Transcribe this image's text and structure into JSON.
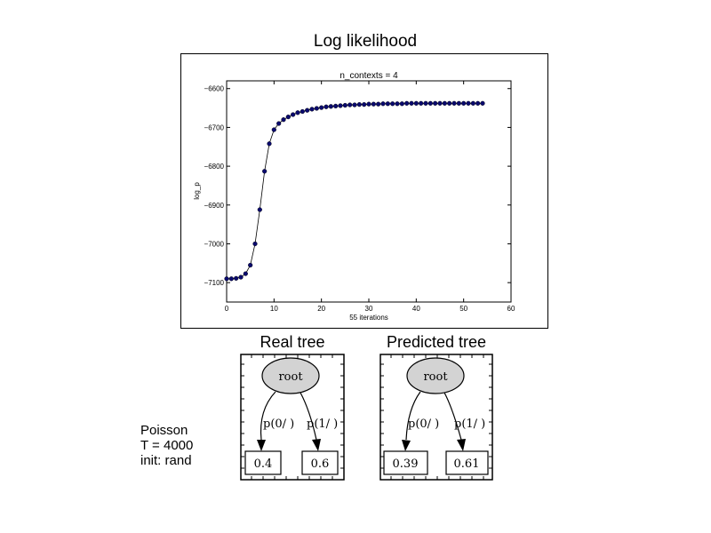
{
  "figure": {
    "title": "Log likelihood"
  },
  "chart_data": {
    "type": "line",
    "title": "n_contexts = 4",
    "xlabel": "55 iterations",
    "ylabel": "log_p",
    "xlim": [
      0,
      60
    ],
    "ylim": [
      -7150,
      -6580
    ],
    "xticks": [
      0,
      10,
      20,
      30,
      40,
      50,
      60
    ],
    "yticks": [
      -7100,
      -7000,
      -6900,
      -6800,
      -6700,
      -6600
    ],
    "series": [
      {
        "marker_color": "#0a0a6e",
        "x": [
          0,
          1,
          2,
          3,
          4,
          5,
          6,
          7,
          8,
          9,
          10,
          11,
          12,
          13,
          14,
          15,
          16,
          17,
          18,
          19,
          20,
          21,
          22,
          23,
          24,
          25,
          26,
          27,
          28,
          29,
          30,
          31,
          32,
          33,
          34,
          35,
          36,
          37,
          38,
          39,
          40,
          41,
          42,
          43,
          44,
          45,
          46,
          47,
          48,
          49,
          50,
          51,
          52,
          53,
          54
        ],
        "values": [
          -7090,
          -7090,
          -7089,
          -7086,
          -7077,
          -7055,
          -7000,
          -6912,
          -6813,
          -6742,
          -6706,
          -6690,
          -6680,
          -6673,
          -6667,
          -6662,
          -6659,
          -6656,
          -6653,
          -6651,
          -6649,
          -6647,
          -6646,
          -6645,
          -6644,
          -6643,
          -6642,
          -6642,
          -6641,
          -6641,
          -6640,
          -6640,
          -6640,
          -6639,
          -6639,
          -6639,
          -6639,
          -6639,
          -6638,
          -6638,
          -6638,
          -6638,
          -6638,
          -6638,
          -6638,
          -6638,
          -6638,
          -6638,
          -6638,
          -6638,
          -6638,
          -6638,
          -6638,
          -6638,
          -6638
        ]
      }
    ]
  },
  "trees": [
    {
      "title": "Real tree",
      "root_label": "root",
      "edge_left": "p(0/ )",
      "edge_right": "p(1/ )",
      "leaf_left": "0.4",
      "leaf_right": "0.6"
    },
    {
      "title": "Predicted tree",
      "root_label": "root",
      "edge_left": "p(0/ )",
      "edge_right": "p(1/ )",
      "leaf_left": "0.39",
      "leaf_right": "0.61"
    }
  ],
  "caption": {
    "line1": "Poisson",
    "line2": "T = 4000",
    "line3": "init: rand"
  }
}
